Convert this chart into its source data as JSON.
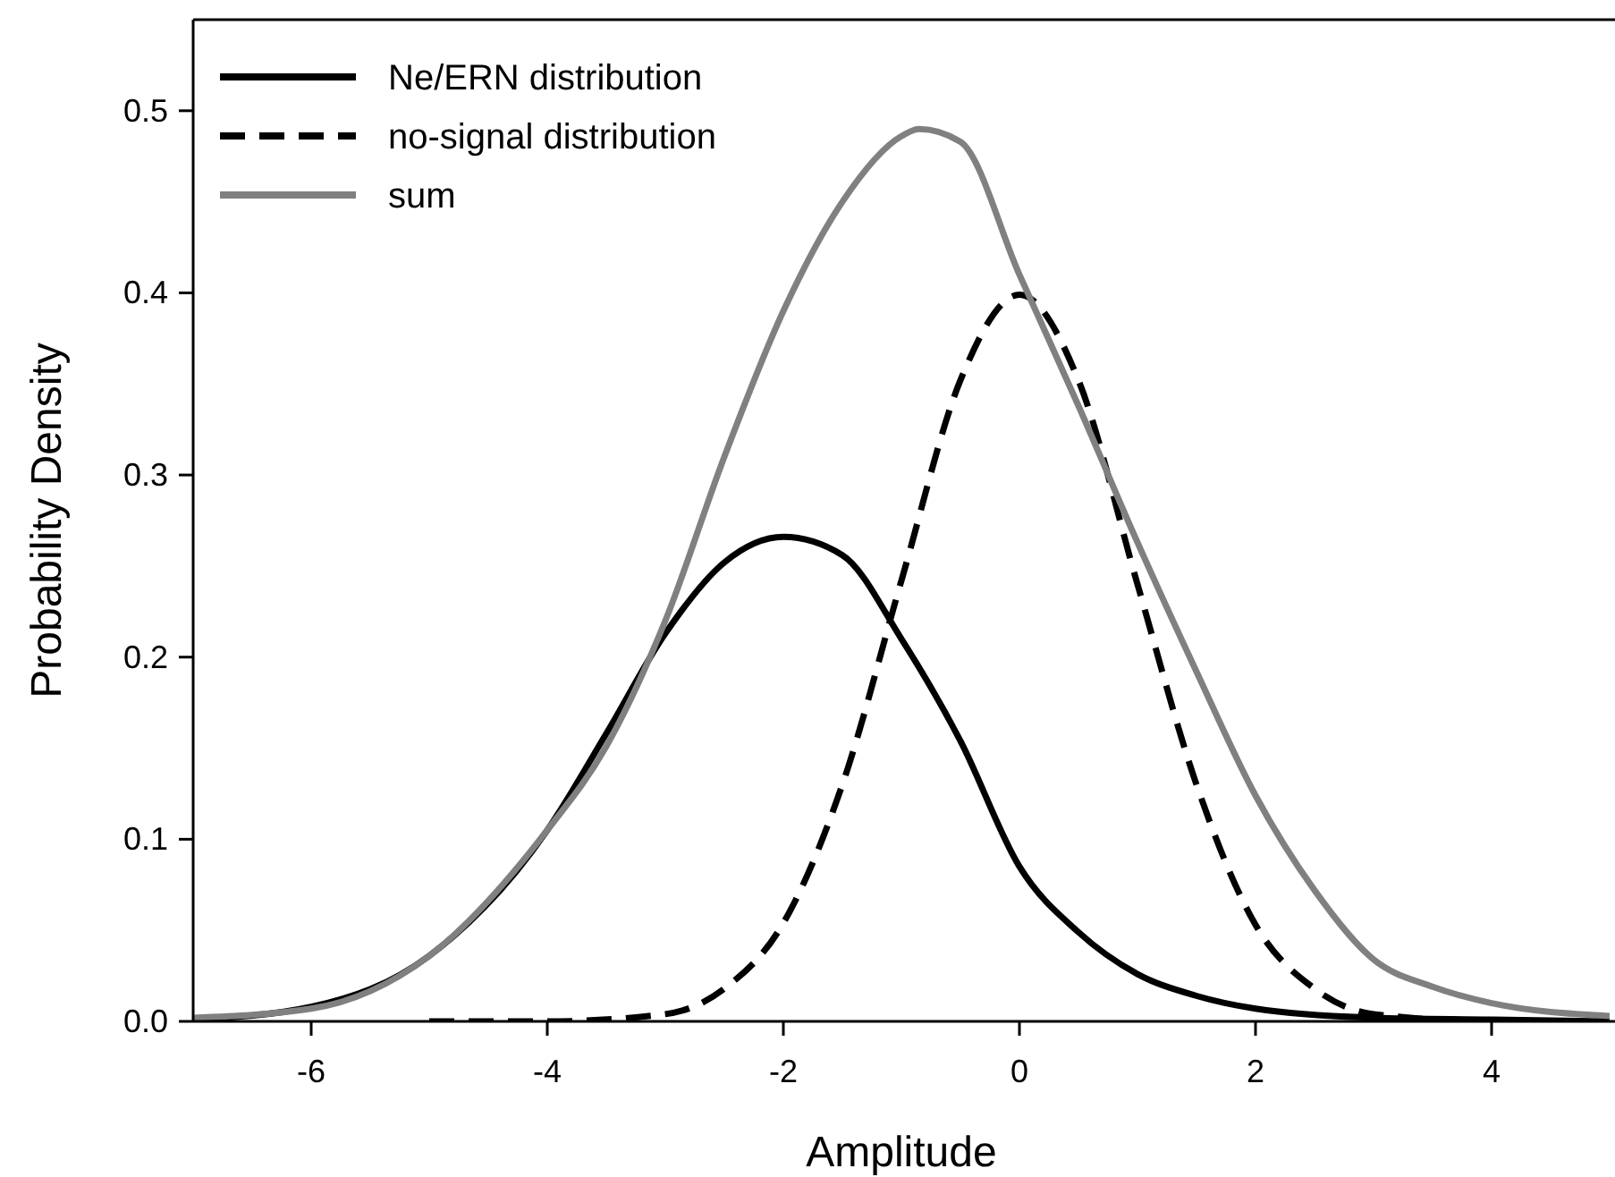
{
  "chart_data": {
    "type": "line",
    "xlabel": "Amplitude",
    "ylabel": "Probability Density",
    "xlim": [
      -7,
      5
    ],
    "xticks": [
      -6,
      -4,
      -2,
      0,
      2,
      4
    ],
    "ylim": [
      0,
      0.55
    ],
    "yticks": [
      {
        "value": 0,
        "label": "0.0"
      },
      {
        "value": 0.1,
        "label": "0.1"
      },
      {
        "value": 0.2,
        "label": "0.2"
      },
      {
        "value": 0.3,
        "label": "0.3"
      },
      {
        "value": 0.4,
        "label": "0.4"
      },
      {
        "value": 0.5,
        "label": "0.5"
      }
    ],
    "grid": false,
    "legend": "top left",
    "marker": "none",
    "series": [
      {
        "name": "Ne/ERN distribution",
        "color": "#000000",
        "line_style": "solid",
        "x": [
          -7,
          -6,
          -5,
          -4,
          -3.5,
          -3,
          -2.5,
          -2,
          -1.5,
          -1,
          -0.5,
          0,
          0.5,
          1,
          1.5,
          2,
          3,
          4,
          5
        ],
        "values": [
          0.001,
          0.008,
          0.036,
          0.105,
          0.158,
          0.213,
          0.252,
          0.266,
          0.256,
          0.21,
          0.154,
          0.085,
          0.049,
          0.026,
          0.014,
          0.007,
          0.002,
          0.001,
          0
        ]
      },
      {
        "name": "no-signal distribution",
        "color": "#000000",
        "line_style": "dashed",
        "x": [
          -5,
          -4,
          -3,
          -2.5,
          -2,
          -1.5,
          -1,
          -0.5,
          0,
          0.5,
          1,
          1.5,
          2,
          2.5,
          3,
          4,
          5
        ],
        "values": [
          0,
          0,
          0.004,
          0.018,
          0.054,
          0.13,
          0.242,
          0.352,
          0.399,
          0.352,
          0.24,
          0.13,
          0.053,
          0.018,
          0.004,
          0,
          0
        ]
      },
      {
        "name": "sum",
        "color": "#808080",
        "line_style": "solid",
        "x": [
          -7,
          -6,
          -5,
          -4,
          -3.5,
          -3,
          -2.5,
          -2,
          -1.5,
          -1,
          -0.85,
          -0.5,
          0,
          0.5,
          1,
          1.5,
          2,
          2.5,
          3,
          3.5,
          4,
          5
        ],
        "values": [
          0.002,
          0.007,
          0.036,
          0.105,
          0.151,
          0.22,
          0.31,
          0.39,
          0.45,
          0.486,
          0.49,
          0.483,
          0.41,
          0.338,
          0.263,
          0.192,
          0.124,
          0.072,
          0.034,
          0.019,
          0.01,
          0.003
        ]
      }
    ]
  }
}
